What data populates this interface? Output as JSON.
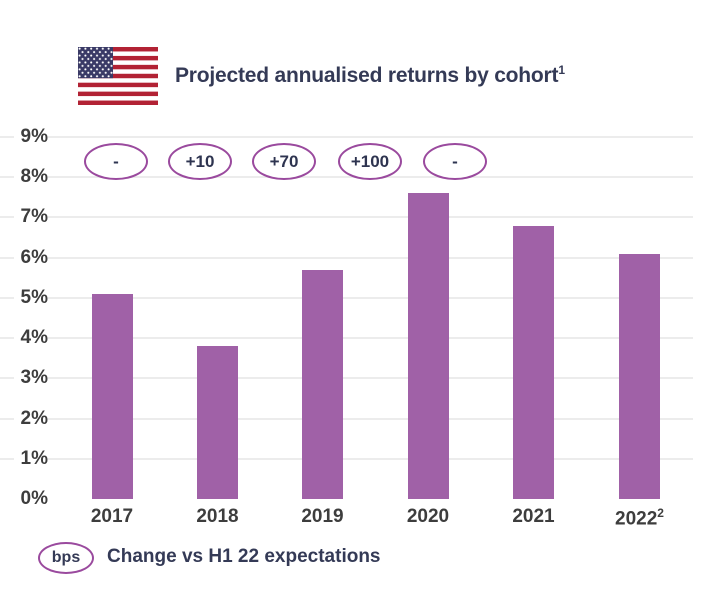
{
  "header": {
    "title": "Projected annualised returns by cohort",
    "title_superscript": "1"
  },
  "chart_data": {
    "type": "bar",
    "title": "Projected annualised returns by cohort¹",
    "categories": [
      "2017",
      "2018",
      "2019",
      "2020",
      "2021",
      "2022"
    ],
    "category_superscripts": [
      "",
      "",
      "",
      "",
      "",
      "2"
    ],
    "values": [
      5.1,
      3.8,
      5.7,
      7.6,
      6.8,
      6.1
    ],
    "value_unit": "%",
    "y_axis": {
      "min": 0,
      "max": 9,
      "tick_step": 1,
      "tick_suffix": "%",
      "ylim": [
        0,
        9
      ]
    },
    "grid": true,
    "badges": [
      {
        "category": "2017",
        "label": "-"
      },
      {
        "category": "2018",
        "label": "+10"
      },
      {
        "category": "2019",
        "label": "+70"
      },
      {
        "category": "2020",
        "label": "+100"
      },
      {
        "category": "2021",
        "label": "-"
      }
    ],
    "badge_unit": "bps",
    "legend_position": "bottom"
  },
  "legend": {
    "badge_label": "bps",
    "description": "Change vs H1 22 expectations"
  },
  "icons": {
    "flag": "us-flag-icon"
  },
  "colors": {
    "bar": "#a061a7",
    "oval_border": "#9a4a9e",
    "title_text": "#343a56",
    "axis_text": "#3d3d3d",
    "badge_text": "#2e3450",
    "gridline": "#ececec",
    "flag_red": "#b22234",
    "flag_blue": "#3a3a66"
  }
}
